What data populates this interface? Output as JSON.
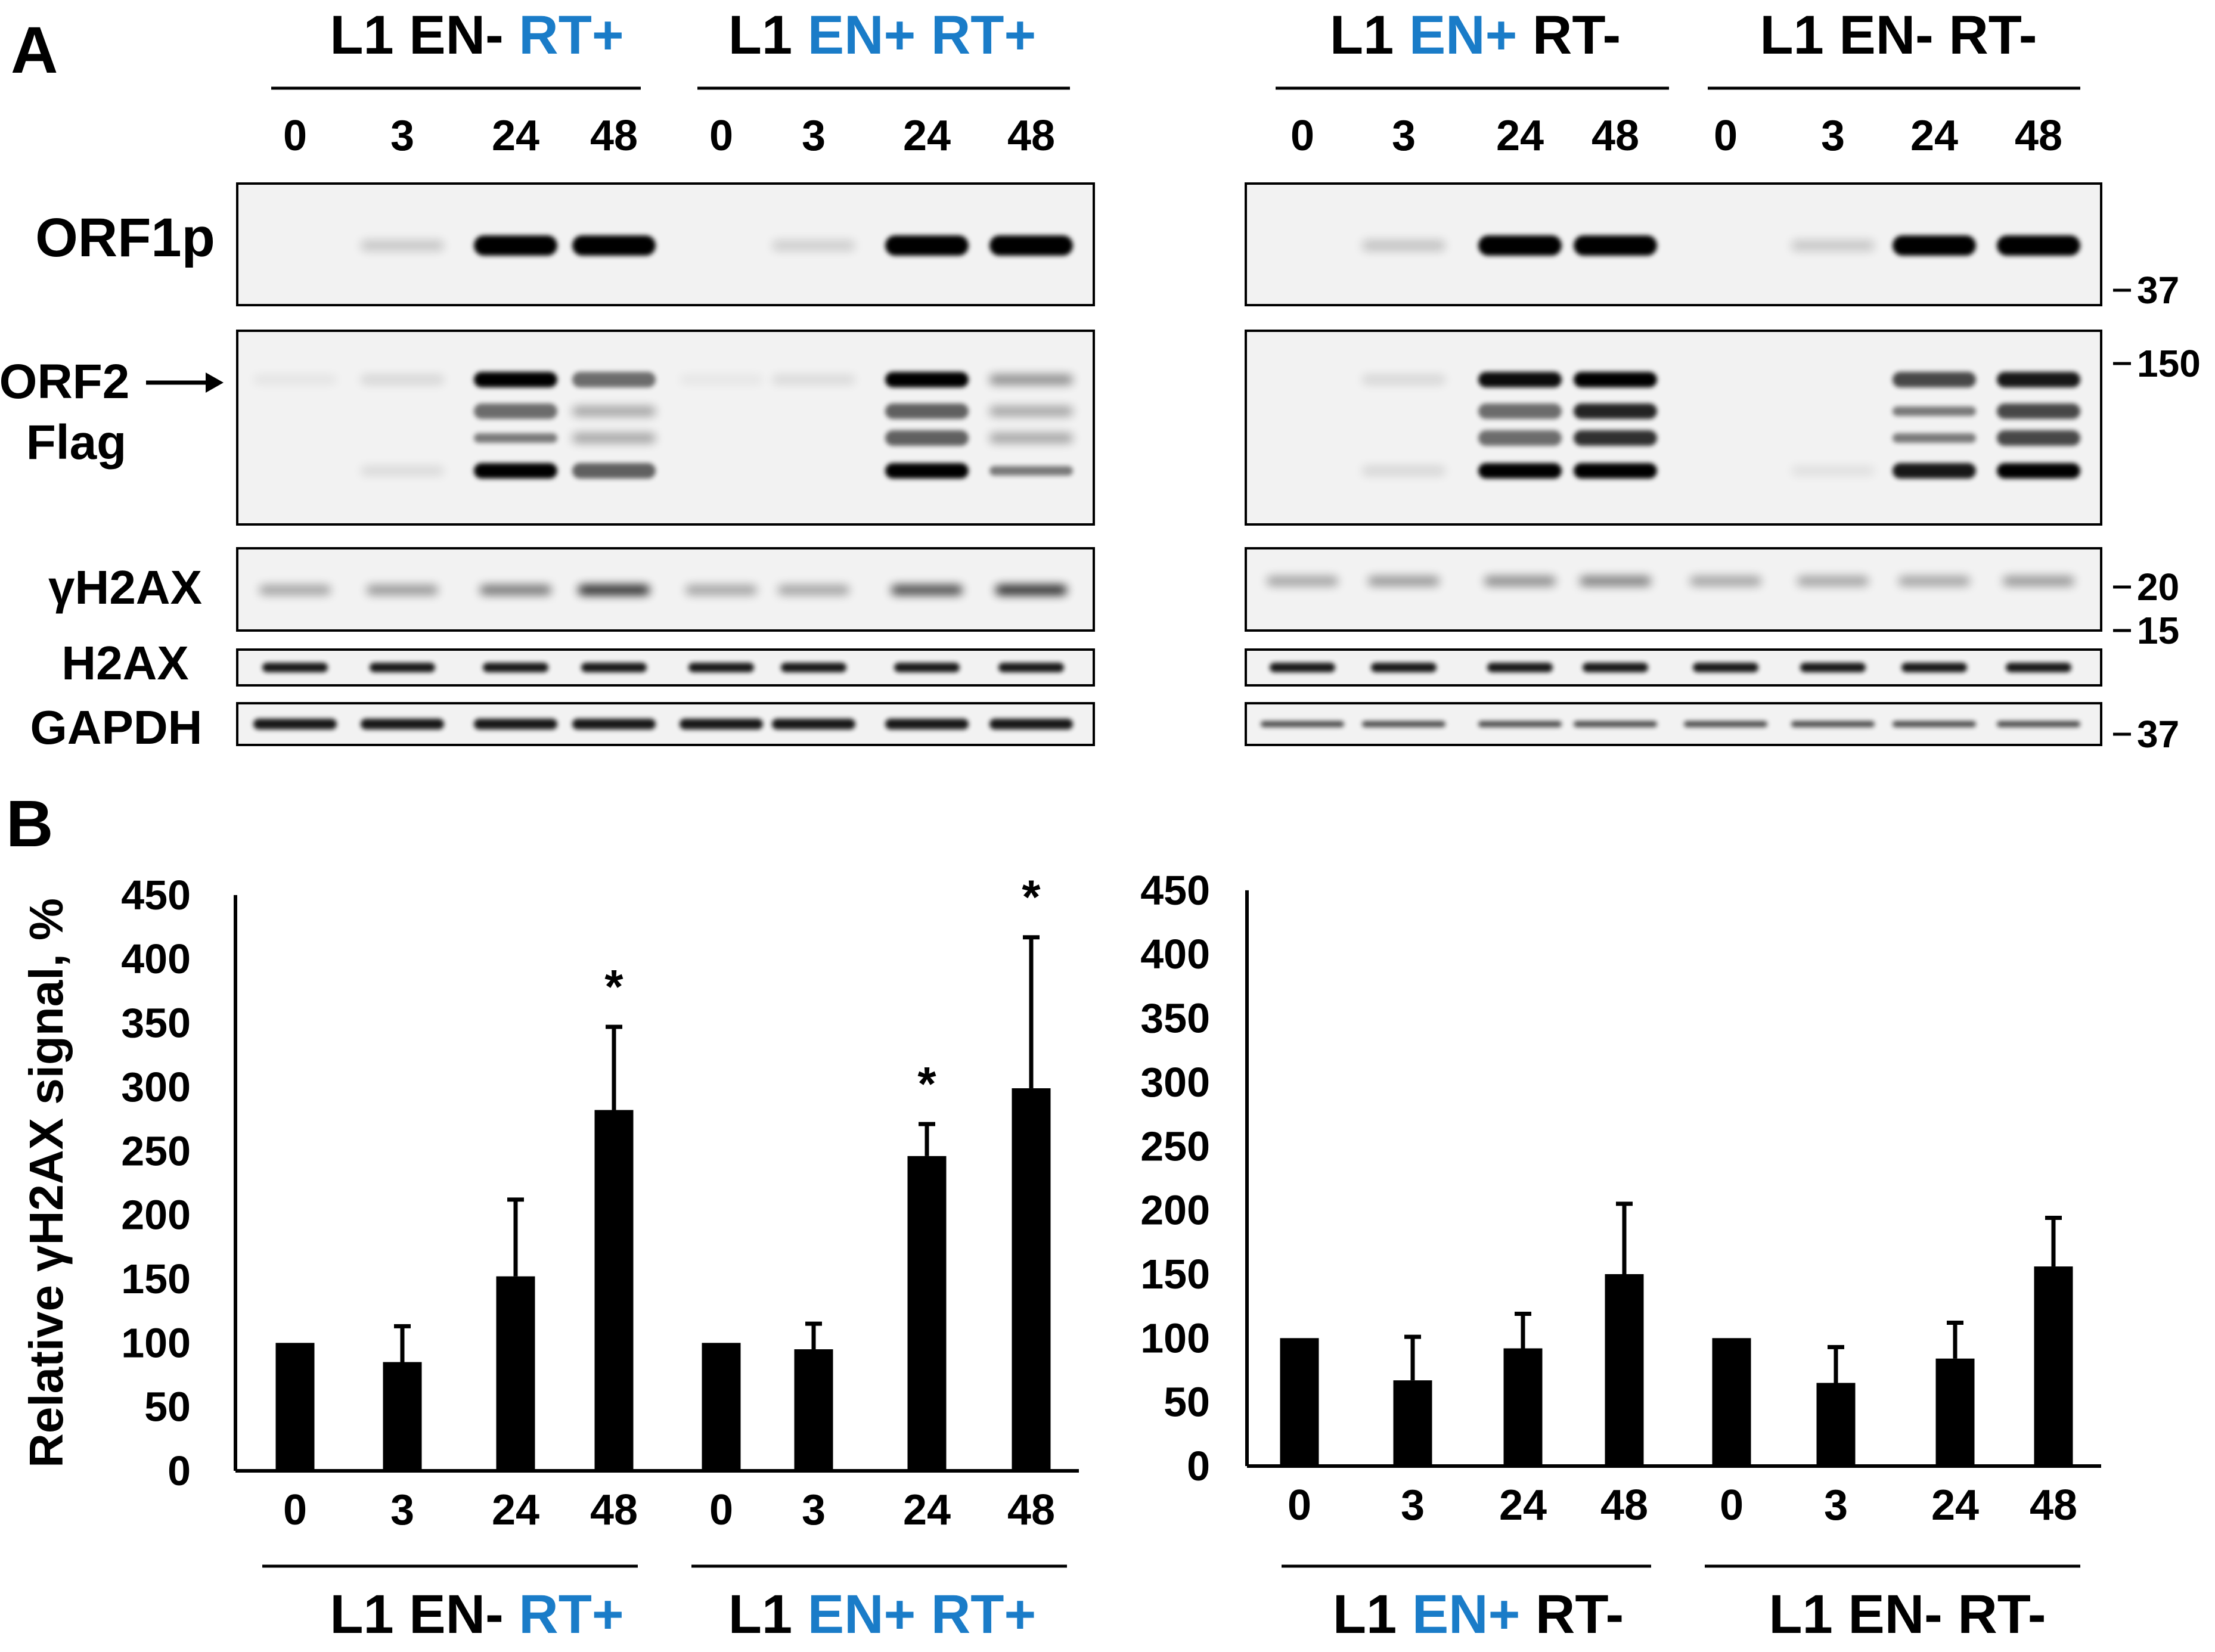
{
  "panel_a_label": "A",
  "panel_b_label": "B",
  "colors": {
    "accent": "#1a7cc8",
    "ink": "#000000",
    "membrane": "#f2f2f2"
  },
  "conditions": [
    {
      "parts": [
        {
          "text": "L1 ",
          "blue": false
        },
        {
          "text": "EN- ",
          "blue": false
        },
        {
          "text": "RT+",
          "blue": true
        }
      ]
    },
    {
      "parts": [
        {
          "text": "L1 ",
          "blue": false
        },
        {
          "text": "EN+ ",
          "blue": true
        },
        {
          "text": "RT+",
          "blue": true
        }
      ]
    },
    {
      "parts": [
        {
          "text": "L1 ",
          "blue": false
        },
        {
          "text": "EN+ ",
          "blue": true
        },
        {
          "text": "RT-",
          "blue": false
        }
      ]
    },
    {
      "parts": [
        {
          "text": "L1 ",
          "blue": false
        },
        {
          "text": "EN- ",
          "blue": false
        },
        {
          "text": "RT-",
          "blue": false
        }
      ]
    }
  ],
  "timepoints": [
    "0",
    "3",
    "24",
    "48"
  ],
  "blot_rows": [
    {
      "lines": [
        "ORF1p"
      ],
      "arrow": false,
      "markers": [
        "37"
      ]
    },
    {
      "lines": [
        "ORF2",
        "Flag"
      ],
      "arrow": true,
      "markers": [
        "150"
      ]
    },
    {
      "lines": [
        "γH2AX"
      ],
      "arrow": false,
      "markers": [
        "20",
        "15"
      ]
    },
    {
      "lines": [
        "H2AX"
      ],
      "arrow": false,
      "markers": []
    },
    {
      "lines": [
        "GAPDH"
      ],
      "arrow": false,
      "markers": [
        "37"
      ]
    }
  ],
  "chart_data": [
    {
      "type": "bar",
      "ylabel": "Relative γH2AX signal, %",
      "ylim": [
        0,
        450
      ],
      "yticks": [
        0,
        50,
        100,
        150,
        200,
        250,
        300,
        350,
        400,
        450
      ],
      "groups": [
        "L1 EN- RT+",
        "L1 EN+ RT+"
      ],
      "categories": [
        "0",
        "3",
        "24",
        "48",
        "0",
        "3",
        "24",
        "48"
      ],
      "values": [
        100,
        85,
        152,
        282,
        100,
        95,
        246,
        299
      ],
      "errors": [
        0,
        28,
        60,
        65,
        0,
        20,
        25,
        118
      ],
      "significant": [
        false,
        false,
        false,
        true,
        false,
        false,
        true,
        true
      ],
      "significance_marker": "*"
    },
    {
      "type": "bar",
      "ylabel": "",
      "ylim": [
        0,
        450
      ],
      "yticks": [
        0,
        50,
        100,
        150,
        200,
        250,
        300,
        350,
        400,
        450
      ],
      "groups": [
        "L1 EN+ RT-",
        "L1 EN- RT-"
      ],
      "categories": [
        "0",
        "3",
        "24",
        "48",
        "0",
        "3",
        "24",
        "48"
      ],
      "values": [
        100,
        67,
        92,
        150,
        100,
        65,
        84,
        156
      ],
      "errors": [
        0,
        34,
        27,
        55,
        0,
        28,
        28,
        38
      ],
      "significant": [
        false,
        false,
        false,
        false,
        false,
        false,
        false,
        false
      ],
      "significance_marker": "*"
    }
  ]
}
